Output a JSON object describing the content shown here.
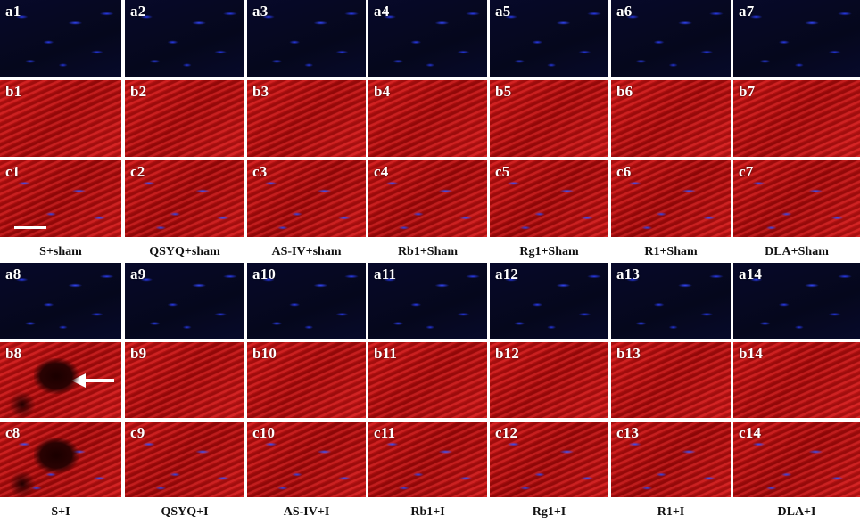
{
  "figure": {
    "top_block": {
      "rows": [
        {
          "type": "blue",
          "labels": [
            "a1",
            "a2",
            "a3",
            "a4",
            "a5",
            "a6",
            "a7"
          ]
        },
        {
          "type": "red",
          "labels": [
            "b1",
            "b2",
            "b3",
            "b4",
            "b5",
            "b6",
            "b7"
          ]
        },
        {
          "type": "merge",
          "labels": [
            "c1",
            "c2",
            "c3",
            "c4",
            "c5",
            "c6",
            "c7"
          ]
        }
      ],
      "captions": [
        "S+sham",
        "QSYQ+sham",
        "AS-IV+sham",
        "Rb1+Sham",
        "Rg1+Sham",
        "R1+Sham",
        "DLA+Sham"
      ]
    },
    "bottom_block": {
      "rows": [
        {
          "type": "blue",
          "labels": [
            "a8",
            "a9",
            "a10",
            "a11",
            "a12",
            "a13",
            "a14"
          ]
        },
        {
          "type": "red",
          "labels": [
            "b8",
            "b9",
            "b10",
            "b11",
            "b12",
            "b13",
            "b14"
          ]
        },
        {
          "type": "merge",
          "labels": [
            "c8",
            "c9",
            "c10",
            "c11",
            "c12",
            "c13",
            "c14"
          ]
        }
      ],
      "captions": [
        "S+I",
        "QSYQ+I",
        "AS-IV+I",
        "Rb1+I",
        "Rg1+I",
        "R1+I",
        "DLA+I"
      ]
    },
    "colors": {
      "nuclei_stain": "#2a3cf0",
      "fiber_stain": "#b01212",
      "label_text": "#ffffff",
      "caption_text": "#111111"
    },
    "markers": {
      "scale_bar_panel": "c1",
      "arrow_panel": "b8",
      "arrow_icon": "left-arrow-icon"
    }
  }
}
